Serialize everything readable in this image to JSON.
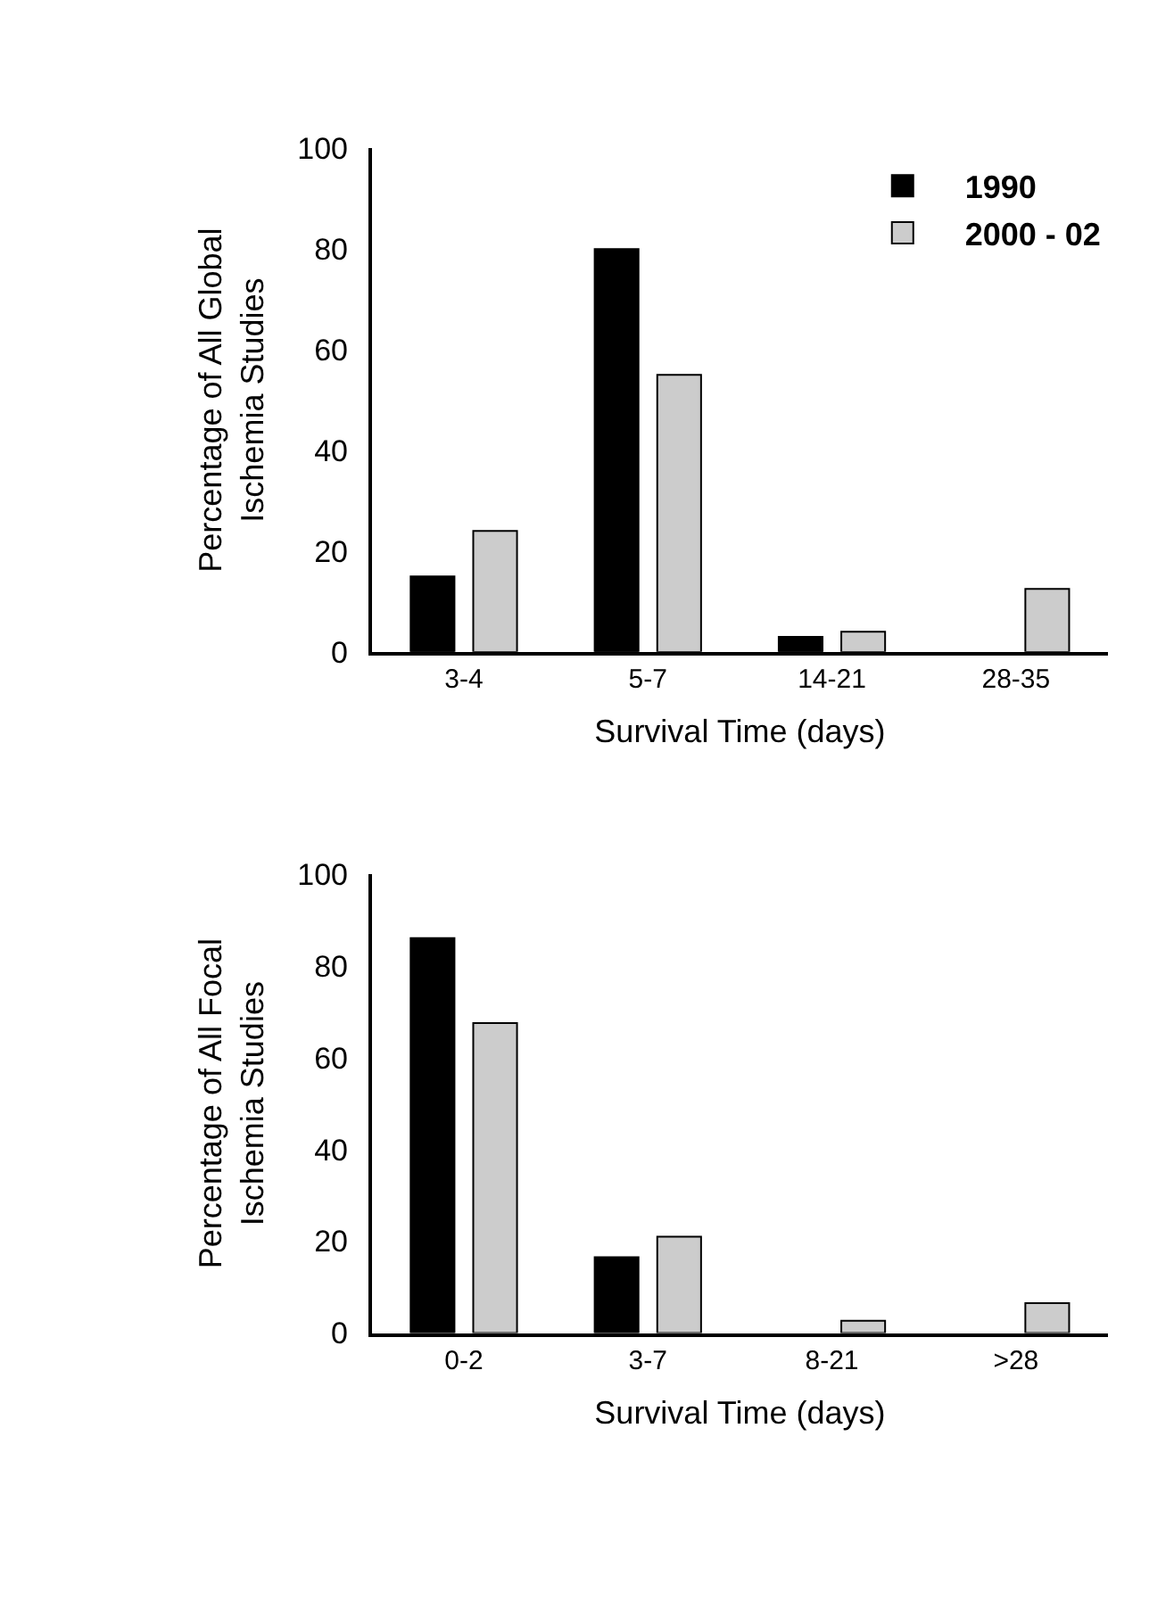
{
  "chart_data": [
    {
      "type": "bar",
      "xlabel": "Survival Time (days)",
      "ylabel": "Percentage of All Global\nIschemia Studies",
      "categories": [
        "3-4",
        "5-7",
        "14-21",
        "28-35"
      ],
      "series": [
        {
          "name": "1990",
          "color": "#000000",
          "values": [
            15,
            80,
            3,
            0
          ]
        },
        {
          "name": "2000 - 02",
          "color": "#cccccc",
          "values": [
            24,
            55,
            4,
            12.5
          ]
        }
      ],
      "ylim": [
        0,
        100
      ],
      "yticks": [
        0,
        20,
        40,
        60,
        80,
        100
      ],
      "legend": "top right"
    },
    {
      "type": "bar",
      "xlabel": "Survival Time (days)",
      "ylabel": "Percentage of All Focal\nIschemia Studies",
      "categories": [
        "0-2",
        "3-7",
        "8-21",
        ">28"
      ],
      "series": [
        {
          "color": "#000000",
          "values": [
            86,
            16.5,
            0,
            0
          ]
        },
        {
          "color": "#cccccc",
          "values": [
            67.5,
            21,
            2.7,
            6.5
          ]
        }
      ],
      "ylim": [
        0,
        100
      ],
      "yticks": [
        0,
        20,
        40,
        60,
        80,
        100
      ]
    }
  ]
}
